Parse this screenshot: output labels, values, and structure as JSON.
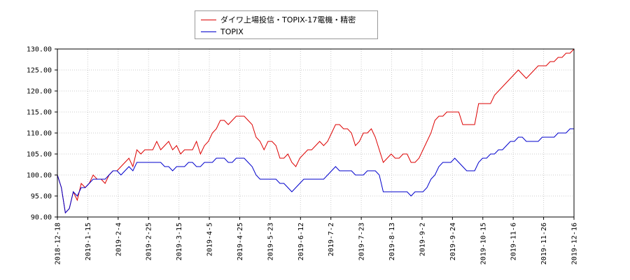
{
  "chart_data": {
    "type": "line",
    "title": "",
    "xlabel": "",
    "ylabel": "",
    "ylim": [
      90,
      130
    ],
    "yticks": [
      "90.00",
      "95.00",
      "100.00",
      "105.00",
      "110.00",
      "115.00",
      "120.00",
      "125.00",
      "130.00"
    ],
    "xticks": [
      "2018-12-18",
      "2019-1-15",
      "2019-2-4",
      "2019-2-25",
      "2019-3-15",
      "2019-4-5",
      "2019-4-25",
      "2019-5-23",
      "2019-6-12",
      "2019-7-2",
      "2019-7-23",
      "2019-8-13",
      "2019-9-2",
      "2019-9-24",
      "2019-10-15",
      "2019-11-6",
      "2019-11-26",
      "2019-12-16"
    ],
    "grid": true,
    "legend_position": "top",
    "series": [
      {
        "name": "ダイワ上場投信・TOPIX-17電機・精密",
        "color": "#dd0000",
        "values": [
          100,
          97,
          91,
          92,
          96,
          94,
          98,
          97,
          98,
          100,
          99,
          99,
          98,
          100,
          101,
          101,
          102,
          103,
          104,
          102,
          106,
          105,
          106,
          106,
          106,
          108,
          106,
          107,
          108,
          106,
          107,
          105,
          106,
          106,
          106,
          108,
          105,
          107,
          108,
          110,
          111,
          113,
          113,
          112,
          113,
          114,
          114,
          114,
          113,
          112,
          109,
          108,
          106,
          108,
          108,
          107,
          104,
          104,
          105,
          103,
          102,
          104,
          105,
          106,
          106,
          107,
          108,
          107,
          108,
          110,
          112,
          112,
          111,
          111,
          110,
          107,
          108,
          110,
          110,
          111,
          109,
          106,
          103,
          104,
          105,
          104,
          104,
          105,
          105,
          103,
          103,
          104,
          106,
          108,
          110,
          113,
          114,
          114,
          115,
          115,
          115,
          115,
          112,
          112,
          112,
          112,
          117,
          117,
          117,
          117,
          119,
          120,
          121,
          122,
          123,
          124,
          125,
          124,
          123,
          124,
          125,
          126,
          126,
          126,
          127,
          127,
          128,
          128,
          129,
          129,
          130
        ]
      },
      {
        "name": "TOPIX",
        "color": "#0000cc",
        "values": [
          100,
          97,
          91,
          92,
          96,
          95,
          97,
          97,
          98,
          99,
          99,
          99,
          99,
          100,
          101,
          101,
          100,
          101,
          102,
          101,
          103,
          103,
          103,
          103,
          103,
          103,
          103,
          102,
          102,
          101,
          102,
          102,
          102,
          103,
          103,
          102,
          102,
          103,
          103,
          103,
          104,
          104,
          104,
          103,
          103,
          104,
          104,
          104,
          103,
          102,
          100,
          99,
          99,
          99,
          99,
          99,
          98,
          98,
          97,
          96,
          97,
          98,
          99,
          99,
          99,
          99,
          99,
          99,
          100,
          101,
          102,
          101,
          101,
          101,
          101,
          100,
          100,
          100,
          101,
          101,
          101,
          100,
          96,
          96,
          96,
          96,
          96,
          96,
          96,
          95,
          96,
          96,
          96,
          97,
          99,
          100,
          102,
          103,
          103,
          103,
          104,
          103,
          102,
          101,
          101,
          101,
          103,
          104,
          104,
          105,
          105,
          106,
          106,
          107,
          108,
          108,
          109,
          109,
          108,
          108,
          108,
          108,
          109,
          109,
          109,
          109,
          110,
          110,
          110,
          111,
          111
        ]
      }
    ]
  }
}
